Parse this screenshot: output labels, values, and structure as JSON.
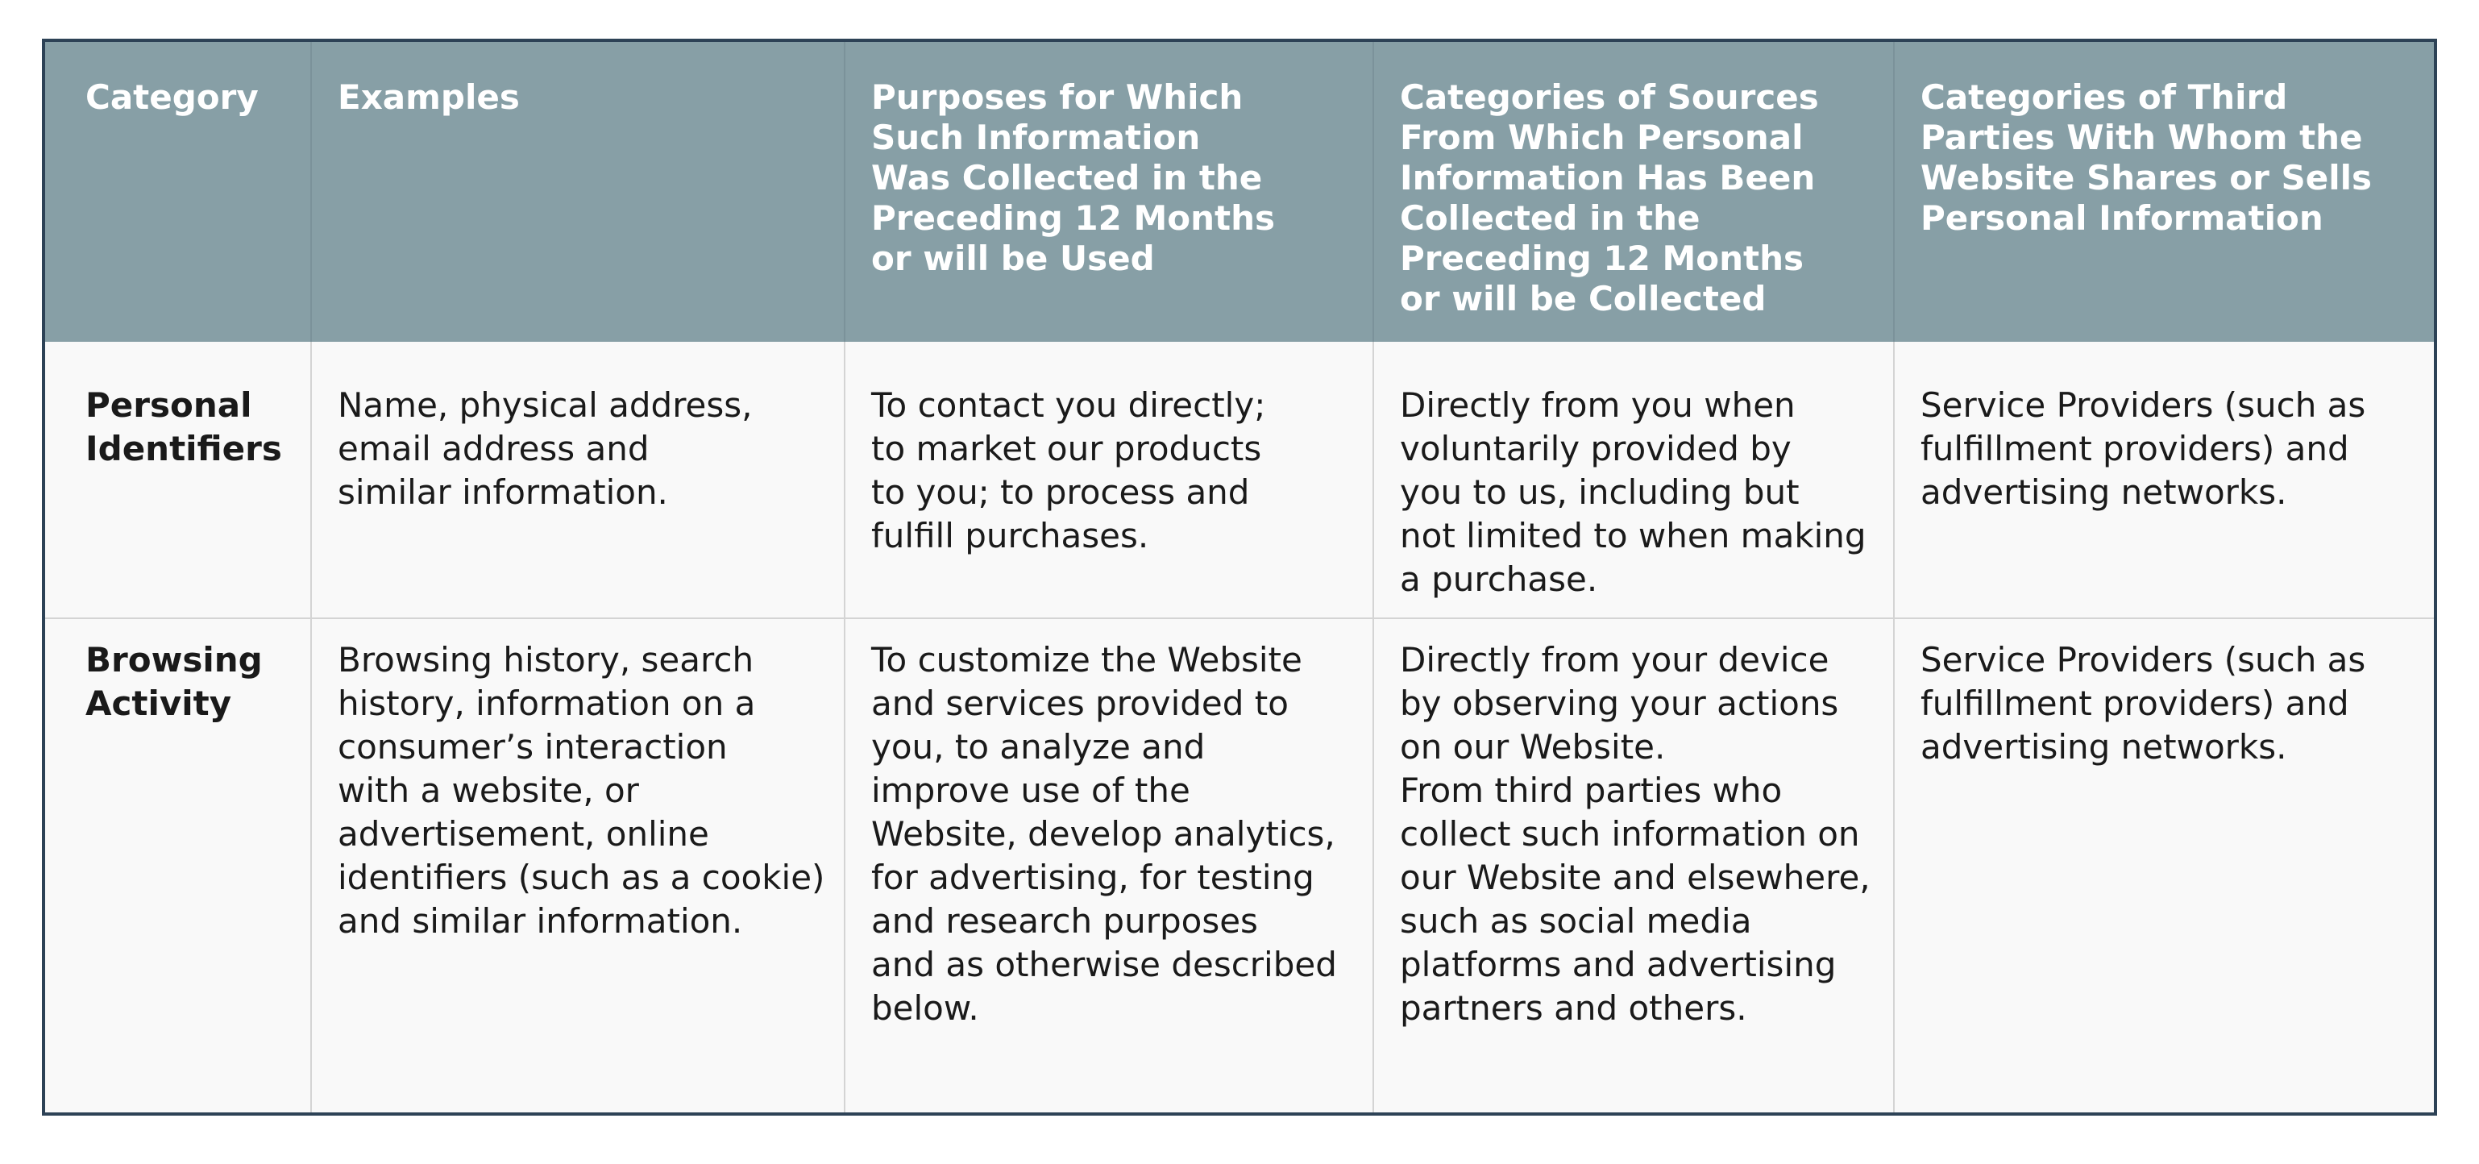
{
  "table": {
    "headers": [
      "Category",
      "Examples",
      "Purposes for Which\nSuch Information\nWas Collected in the\nPreceding 12 Months\nor will be Used",
      "Categories of Sources\nFrom Which Personal\nInformation Has Been\nCollected in the\nPreceding 12 Months\nor will be Collected",
      "Categories of Third\nParties With Whom the\nWebsite Shares or Sells\nPersonal Information"
    ],
    "rows": [
      {
        "category": "Personal\nIdentifiers",
        "examples": "Name, physical address,\nemail address and\nsimilar information.",
        "purposes": "To contact you directly;\nto market our products\nto you; to process and\nfulfill purchases.",
        "sources": "Directly from you when\nvoluntarily provided by\nyou to us, including but\nnot limited to when making\na purchase.",
        "third_parties": "Service Providers (such as\nfulfillment providers) and\nadvertising networks."
      },
      {
        "category": "Browsing\nActivity",
        "examples": "Browsing history, search\nhistory, information on a\nconsumer’s interaction\nwith a website, or\nadvertisement, online\nidentifiers (such as a cookie)\nand similar information.",
        "purposes": "To customize the Website\nand services provided to\nyou, to analyze and\nimprove use of the\nWebsite, develop analytics,\nfor advertising, for testing\nand research purposes\nand as otherwise described\nbelow.",
        "sources": "Directly from your device\nby observing your actions\non our Website.\nFrom third parties who\ncollect such information on\nour Website and elsewhere,\nsuch as social media\nplatforms and advertising\npartners and others.",
        "third_parties": "Service Providers (such as\nfulfillment providers) and\nadvertising networks."
      }
    ]
  }
}
